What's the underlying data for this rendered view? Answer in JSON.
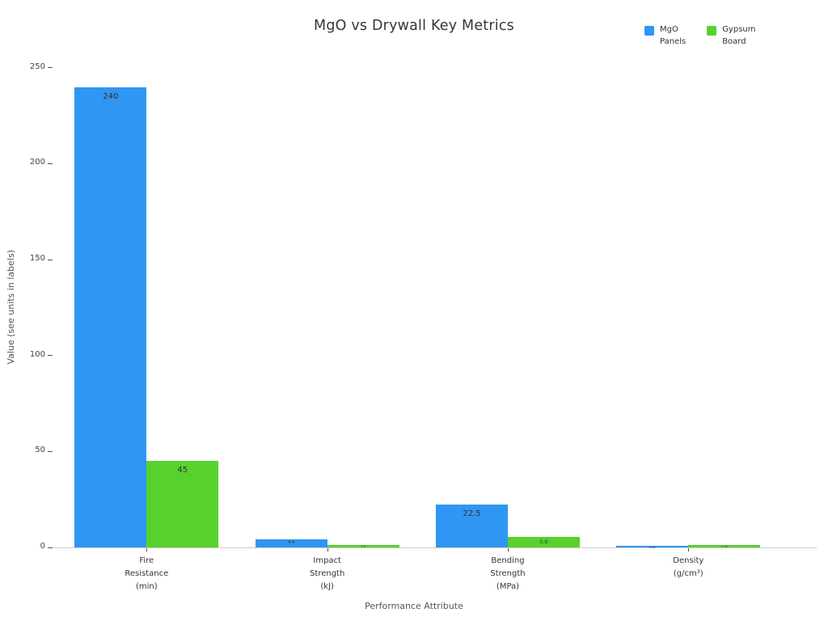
{
  "title": "MgO vs Drywall Key Metrics",
  "xlabel": "Performance Attribute",
  "ylabel": "Value (see units in labels)",
  "legend": {
    "items": [
      {
        "name": "MgO Panels",
        "lines": [
          "MgO",
          "Panels"
        ],
        "color": "#2f96f3"
      },
      {
        "name": "Gypsum Board",
        "lines": [
          "Gypsum",
          "Board"
        ],
        "color": "#57d22c"
      }
    ]
  },
  "chart_data": {
    "type": "bar",
    "title": "MgO vs Drywall Key Metrics",
    "xlabel": "Performance Attribute",
    "ylabel": "Value (see units in labels)",
    "categories": [
      [
        "Fire",
        "Resistance",
        "(min)"
      ],
      [
        "Impact",
        "Strength",
        "(kJ)"
      ],
      [
        "Bending",
        "Strength",
        "(MPa)"
      ],
      [
        "Density",
        "(g/cm³)"
      ]
    ],
    "series": [
      {
        "name": "MgO Panels",
        "color": "#2f96f3",
        "values": [
          240,
          4.4,
          22.5,
          0.95
        ],
        "labels": [
          "240",
          "4.4",
          "22.5",
          "0.95"
        ]
      },
      {
        "name": "Gypsum Board",
        "color": "#57d22c",
        "values": [
          45,
          1.2,
          5.6,
          1.15
        ],
        "labels": [
          "45",
          "1.2",
          "5.6",
          "1.15"
        ]
      }
    ],
    "yticks": [
      0,
      50,
      100,
      150,
      200,
      250
    ],
    "ylim": [
      0,
      250
    ],
    "grid": false,
    "legend_position": "top-right"
  }
}
